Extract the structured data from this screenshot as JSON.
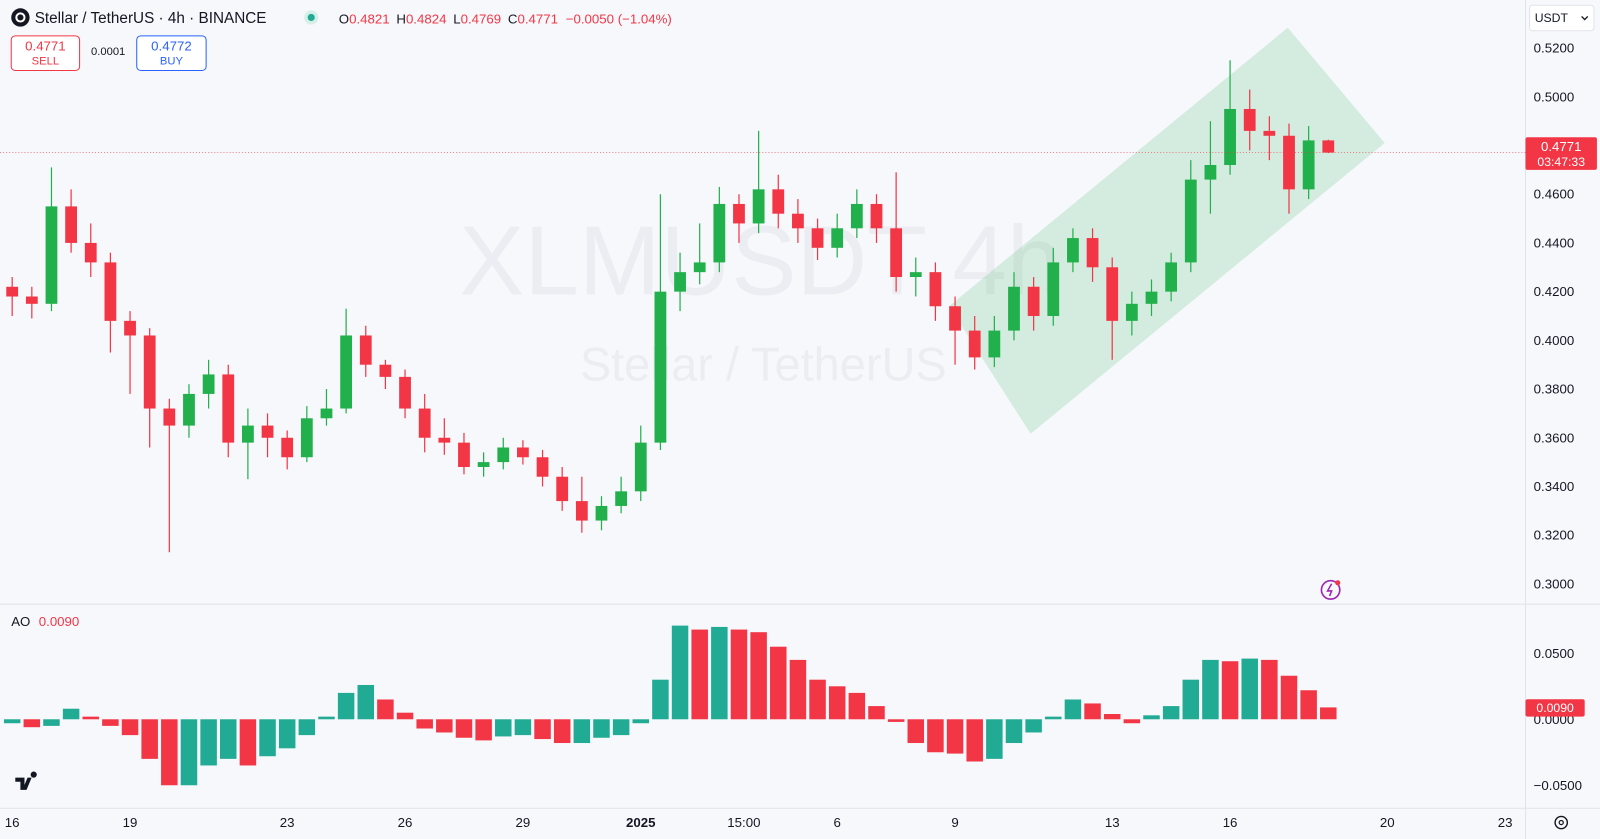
{
  "header": {
    "symbol": "Stellar / TetherUS · 4h · BINANCE",
    "ohlc_letters": [
      "O",
      "H",
      "L",
      "C"
    ],
    "change": "−0.0050 (−1.04%)"
  },
  "trade": {
    "sell_price": 0.4771,
    "sell": "SELL",
    "spread": 0.0001,
    "buy_price": 0.4772,
    "buy": "BUY"
  },
  "currency": "USDT",
  "watermark": {
    "ticker": "XLMUSDT 4h",
    "name": "Stellar / TetherUS"
  },
  "chart_data": [
    {
      "type": "candlestick",
      "x": [
        0,
        0.5,
        1,
        1.5,
        2,
        2.5,
        3,
        3.5,
        4,
        4.5,
        5,
        5.5,
        6,
        6.5,
        7,
        7.5,
        8,
        8.5,
        9,
        9.5,
        10,
        10.5,
        11,
        11.5,
        12,
        12.5,
        13,
        13.5,
        14,
        14.5,
        15,
        15.5,
        16,
        16.5,
        17,
        17.5,
        18,
        18.5,
        19,
        19.5,
        20,
        20.5,
        21,
        21.5,
        22,
        22.5,
        23,
        23.5,
        24,
        24.5,
        25,
        25.5,
        26,
        26.5,
        27,
        27.5,
        28,
        28.5,
        29,
        29.5,
        30,
        30.5,
        31,
        31.5,
        32,
        32.5,
        33,
        33.5
      ],
      "open": [
        0.422,
        0.418,
        0.415,
        0.455,
        0.44,
        0.432,
        0.408,
        0.402,
        0.372,
        0.365,
        0.378,
        0.386,
        0.358,
        0.365,
        0.36,
        0.352,
        0.368,
        0.372,
        0.402,
        0.39,
        0.385,
        0.372,
        0.36,
        0.358,
        0.348,
        0.35,
        0.356,
        0.352,
        0.344,
        0.334,
        0.326,
        0.332,
        0.338,
        0.358,
        0.42,
        0.428,
        0.432,
        0.456,
        0.448,
        0.462,
        0.452,
        0.446,
        0.438,
        0.446,
        0.456,
        0.446,
        0.426,
        0.428,
        0.414,
        0.404,
        0.393,
        0.404,
        0.422,
        0.41,
        0.432,
        0.442,
        0.43,
        0.408,
        0.415,
        0.42,
        0.432,
        0.466,
        0.472,
        0.495,
        0.486,
        0.484,
        0.462,
        0.4821
      ],
      "high": [
        0.426,
        0.422,
        0.471,
        0.462,
        0.448,
        0.436,
        0.412,
        0.405,
        0.376,
        0.382,
        0.392,
        0.39,
        0.372,
        0.37,
        0.363,
        0.373,
        0.38,
        0.413,
        0.406,
        0.392,
        0.388,
        0.378,
        0.368,
        0.362,
        0.354,
        0.36,
        0.359,
        0.355,
        0.348,
        0.344,
        0.336,
        0.344,
        0.365,
        0.46,
        0.436,
        0.448,
        0.463,
        0.46,
        0.486,
        0.468,
        0.458,
        0.45,
        0.452,
        0.462,
        0.46,
        0.469,
        0.434,
        0.432,
        0.418,
        0.41,
        0.41,
        0.428,
        0.426,
        0.438,
        0.446,
        0.446,
        0.434,
        0.42,
        0.425,
        0.436,
        0.474,
        0.49,
        0.515,
        0.503,
        0.492,
        0.489,
        0.488,
        0.4824
      ],
      "low": [
        0.41,
        0.409,
        0.412,
        0.436,
        0.426,
        0.395,
        0.378,
        0.356,
        0.313,
        0.36,
        0.372,
        0.352,
        0.343,
        0.352,
        0.347,
        0.35,
        0.365,
        0.37,
        0.385,
        0.38,
        0.368,
        0.354,
        0.353,
        0.345,
        0.344,
        0.347,
        0.349,
        0.34,
        0.33,
        0.321,
        0.322,
        0.329,
        0.334,
        0.355,
        0.412,
        0.423,
        0.428,
        0.44,
        0.444,
        0.446,
        0.44,
        0.433,
        0.434,
        0.442,
        0.44,
        0.42,
        0.418,
        0.408,
        0.39,
        0.388,
        0.389,
        0.4,
        0.404,
        0.406,
        0.428,
        0.424,
        0.392,
        0.402,
        0.41,
        0.416,
        0.428,
        0.452,
        0.468,
        0.478,
        0.474,
        0.452,
        0.458,
        0.4769
      ],
      "close": [
        0.418,
        0.415,
        0.455,
        0.44,
        0.432,
        0.408,
        0.402,
        0.372,
        0.365,
        0.378,
        0.386,
        0.358,
        0.365,
        0.36,
        0.352,
        0.368,
        0.372,
        0.402,
        0.39,
        0.385,
        0.372,
        0.36,
        0.358,
        0.348,
        0.35,
        0.356,
        0.352,
        0.344,
        0.334,
        0.326,
        0.332,
        0.338,
        0.358,
        0.42,
        0.428,
        0.432,
        0.456,
        0.448,
        0.462,
        0.452,
        0.446,
        0.438,
        0.446,
        0.456,
        0.446,
        0.426,
        0.428,
        0.414,
        0.404,
        0.393,
        0.404,
        0.422,
        0.41,
        0.432,
        0.442,
        0.43,
        0.408,
        0.415,
        0.42,
        0.432,
        0.466,
        0.472,
        0.495,
        0.486,
        0.484,
        0.462,
        0.4821,
        0.4771
      ],
      "up_color": "#21b04b",
      "down_color": "#f23645",
      "countdown": "03:47:33",
      "xlim": [
        -0.31,
        38.52
      ],
      "xticks": [
        {
          "value": 0,
          "label": "16"
        },
        {
          "value": 3,
          "label": "19"
        },
        {
          "value": 7,
          "label": "23"
        },
        {
          "value": 10,
          "label": "26"
        },
        {
          "value": 13,
          "label": "29"
        },
        {
          "value": 16,
          "label": "2025",
          "bold": true
        },
        {
          "value": 18.625,
          "label": "15:00"
        },
        {
          "value": 21,
          "label": "6"
        },
        {
          "value": 24,
          "label": "9"
        },
        {
          "value": 28,
          "label": "13"
        },
        {
          "value": 31,
          "label": "16"
        },
        {
          "value": 35,
          "label": "20"
        },
        {
          "value": 38,
          "label": "23"
        }
      ],
      "ylim": [
        0.2925,
        0.5397
      ],
      "yticks": [
        {
          "value": 0.3,
          "label": "0.3000"
        },
        {
          "value": 0.32,
          "label": "0.3200"
        },
        {
          "value": 0.34,
          "label": "0.3400"
        },
        {
          "value": 0.36,
          "label": "0.3600"
        },
        {
          "value": 0.38,
          "label": "0.3800"
        },
        {
          "value": 0.4,
          "label": "0.4000"
        },
        {
          "value": 0.42,
          "label": "0.4200"
        },
        {
          "value": 0.44,
          "label": "0.4400"
        },
        {
          "value": 0.46,
          "label": "0.4600"
        },
        {
          "value": 0.48,
          "label": "0.4800"
        },
        {
          "value": 0.5,
          "label": "0.5000"
        },
        {
          "value": 0.52,
          "label": "0.5200"
        }
      ],
      "grid": false
    },
    {
      "type": "bar",
      "title": "AO",
      "values": [
        -0.003,
        -0.006,
        -0.005,
        0.008,
        0.002,
        -0.005,
        -0.012,
        -0.03,
        -0.05,
        -0.05,
        -0.035,
        -0.03,
        -0.035,
        -0.028,
        -0.022,
        -0.012,
        0.002,
        0.02,
        0.026,
        0.015,
        0.005,
        -0.007,
        -0.01,
        -0.014,
        -0.016,
        -0.013,
        -0.012,
        -0.015,
        -0.018,
        -0.018,
        -0.014,
        -0.012,
        -0.003,
        0.03,
        0.071,
        0.068,
        0.07,
        0.068,
        0.066,
        0.055,
        0.045,
        0.03,
        0.025,
        0.02,
        0.01,
        -0.002,
        -0.018,
        -0.025,
        -0.026,
        -0.032,
        -0.03,
        -0.018,
        -0.01,
        0.002,
        0.015,
        0.012,
        0.004,
        -0.003,
        0.003,
        0.01,
        0.03,
        0.045,
        0.044,
        0.046,
        0.045,
        0.033,
        0.022,
        0.009
      ],
      "last_value_label": "0.0090",
      "up_color": "#22ab94",
      "down_color": "#f23645",
      "ylim": [
        -0.0659,
        0.0849
      ],
      "yticks": [
        {
          "value": 0.05,
          "label": "0.0500"
        },
        {
          "value": 0,
          "label": "0.0000"
        },
        {
          "value": -0.05,
          "label": "−0.0500"
        }
      ],
      "grid": false
    }
  ]
}
